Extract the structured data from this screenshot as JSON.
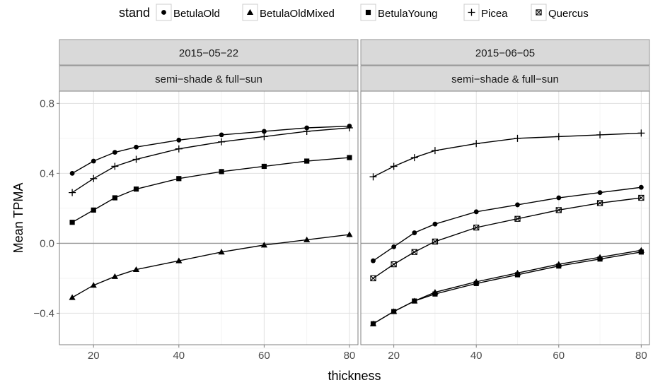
{
  "chart_data": {
    "type": "line",
    "xlabel": "thickness",
    "ylabel": "Mean TPMA",
    "xlim": [
      12,
      82
    ],
    "ylim": [
      -0.58,
      0.87
    ],
    "x_ticks": [
      20,
      40,
      60,
      80
    ],
    "y_ticks": [
      -0.4,
      0.0,
      0.4,
      0.8
    ],
    "y_tick_labels": [
      "-0.4",
      "0.0",
      "0.4",
      "0.8"
    ],
    "x_tick_labels": [
      "20",
      "40",
      "60",
      "80"
    ],
    "grid": true,
    "legend_title": "stand",
    "legend_position": "top",
    "x": [
      15,
      20,
      25,
      30,
      40,
      50,
      60,
      70,
      80
    ],
    "legend": [
      {
        "name": "BetulaOld",
        "symbol": "•"
      },
      {
        "name": "BetulaOldMixed",
        "symbol": "▲"
      },
      {
        "name": "BetulaYoung",
        "symbol": "■"
      },
      {
        "name": "Picea",
        "symbol": "+"
      },
      {
        "name": "Quercus",
        "symbol": "⊠"
      }
    ],
    "panels": [
      {
        "date": "2015−05−22",
        "condition": "semi−shade & full−sun",
        "series": [
          {
            "name": "BetulaOld",
            "shape": "circle",
            "values": [
              0.4,
              0.47,
              0.52,
              0.55,
              0.59,
              0.62,
              0.64,
              0.66,
              0.67
            ]
          },
          {
            "name": "BetulaOldMixed",
            "shape": "triangle",
            "values": [
              -0.31,
              -0.24,
              -0.19,
              -0.15,
              -0.1,
              -0.05,
              -0.01,
              0.02,
              0.05
            ]
          },
          {
            "name": "BetulaYoung",
            "shape": "square",
            "values": [
              0.12,
              0.19,
              0.26,
              0.31,
              0.37,
              0.41,
              0.44,
              0.47,
              0.49
            ]
          },
          {
            "name": "Picea",
            "shape": "plus",
            "values": [
              0.29,
              0.37,
              0.44,
              0.48,
              0.54,
              0.58,
              0.61,
              0.64,
              0.66
            ]
          }
        ]
      },
      {
        "date": "2015−06−05",
        "condition": "semi−shade & full−sun",
        "series": [
          {
            "name": "BetulaOld",
            "shape": "circle",
            "values": [
              -0.1,
              -0.02,
              0.06,
              0.11,
              0.18,
              0.22,
              0.26,
              0.29,
              0.32
            ]
          },
          {
            "name": "BetulaOldMixed",
            "shape": "triangle",
            "values": [
              -0.46,
              -0.39,
              -0.33,
              -0.28,
              -0.22,
              -0.17,
              -0.12,
              -0.08,
              -0.04
            ]
          },
          {
            "name": "BetulaYoung",
            "shape": "square",
            "values": [
              -0.46,
              -0.39,
              -0.33,
              -0.29,
              -0.23,
              -0.18,
              -0.13,
              -0.09,
              -0.05
            ]
          },
          {
            "name": "Picea",
            "shape": "plus",
            "values": [
              0.38,
              0.44,
              0.49,
              0.53,
              0.57,
              0.6,
              0.61,
              0.62,
              0.63
            ]
          },
          {
            "name": "Quercus",
            "shape": "boxx",
            "values": [
              -0.2,
              -0.12,
              -0.05,
              0.01,
              0.09,
              0.14,
              0.19,
              0.23,
              0.26
            ]
          }
        ]
      }
    ]
  }
}
